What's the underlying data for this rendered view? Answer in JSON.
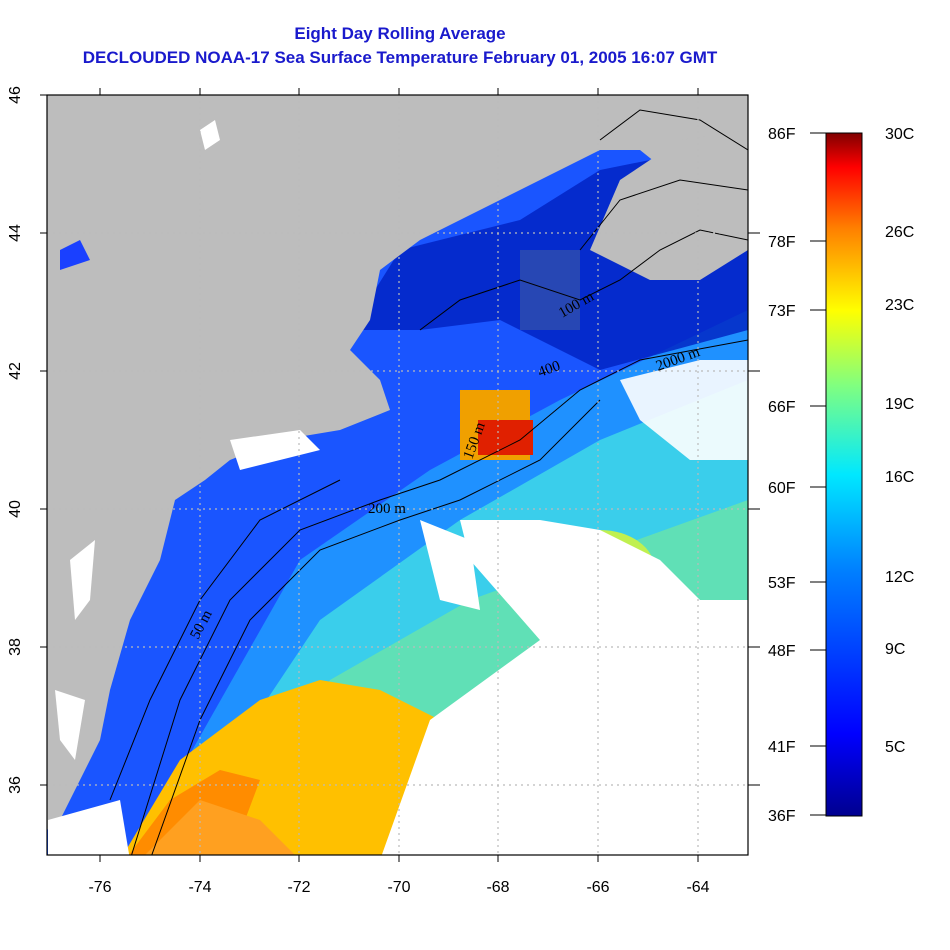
{
  "title_line1": "Eight Day Rolling Average",
  "title_line2": "DECLOUDED NOAA-17 Sea Surface Temperature February 01, 2005 16:07 GMT",
  "map": {
    "lon_ticks": [
      "-76",
      "-74",
      "-72",
      "-70",
      "-68",
      "-66",
      "-64"
    ],
    "lat_ticks": [
      "46",
      "44",
      "42",
      "40",
      "38",
      "36"
    ],
    "contour_labels": [
      "50 m",
      "200 m",
      "100 m",
      "150 m",
      "400",
      "2000 m"
    ],
    "colors": {
      "land": "#bdbdbd",
      "cloud": "#ffffff"
    }
  },
  "colorbar": {
    "fahrenheit_labels": [
      "86F",
      "78F",
      "73F",
      "66F",
      "60F",
      "53F",
      "48F",
      "41F",
      "36F"
    ],
    "celsius_labels": [
      "30C",
      "26C",
      "23C",
      "19C",
      "16C",
      "12C",
      "9C",
      "5C"
    ],
    "color_stops": [
      "#00008f",
      "#0000ff",
      "#0080ff",
      "#00ffff",
      "#80ff80",
      "#ffff00",
      "#ff8000",
      "#ff0000",
      "#800000"
    ]
  }
}
